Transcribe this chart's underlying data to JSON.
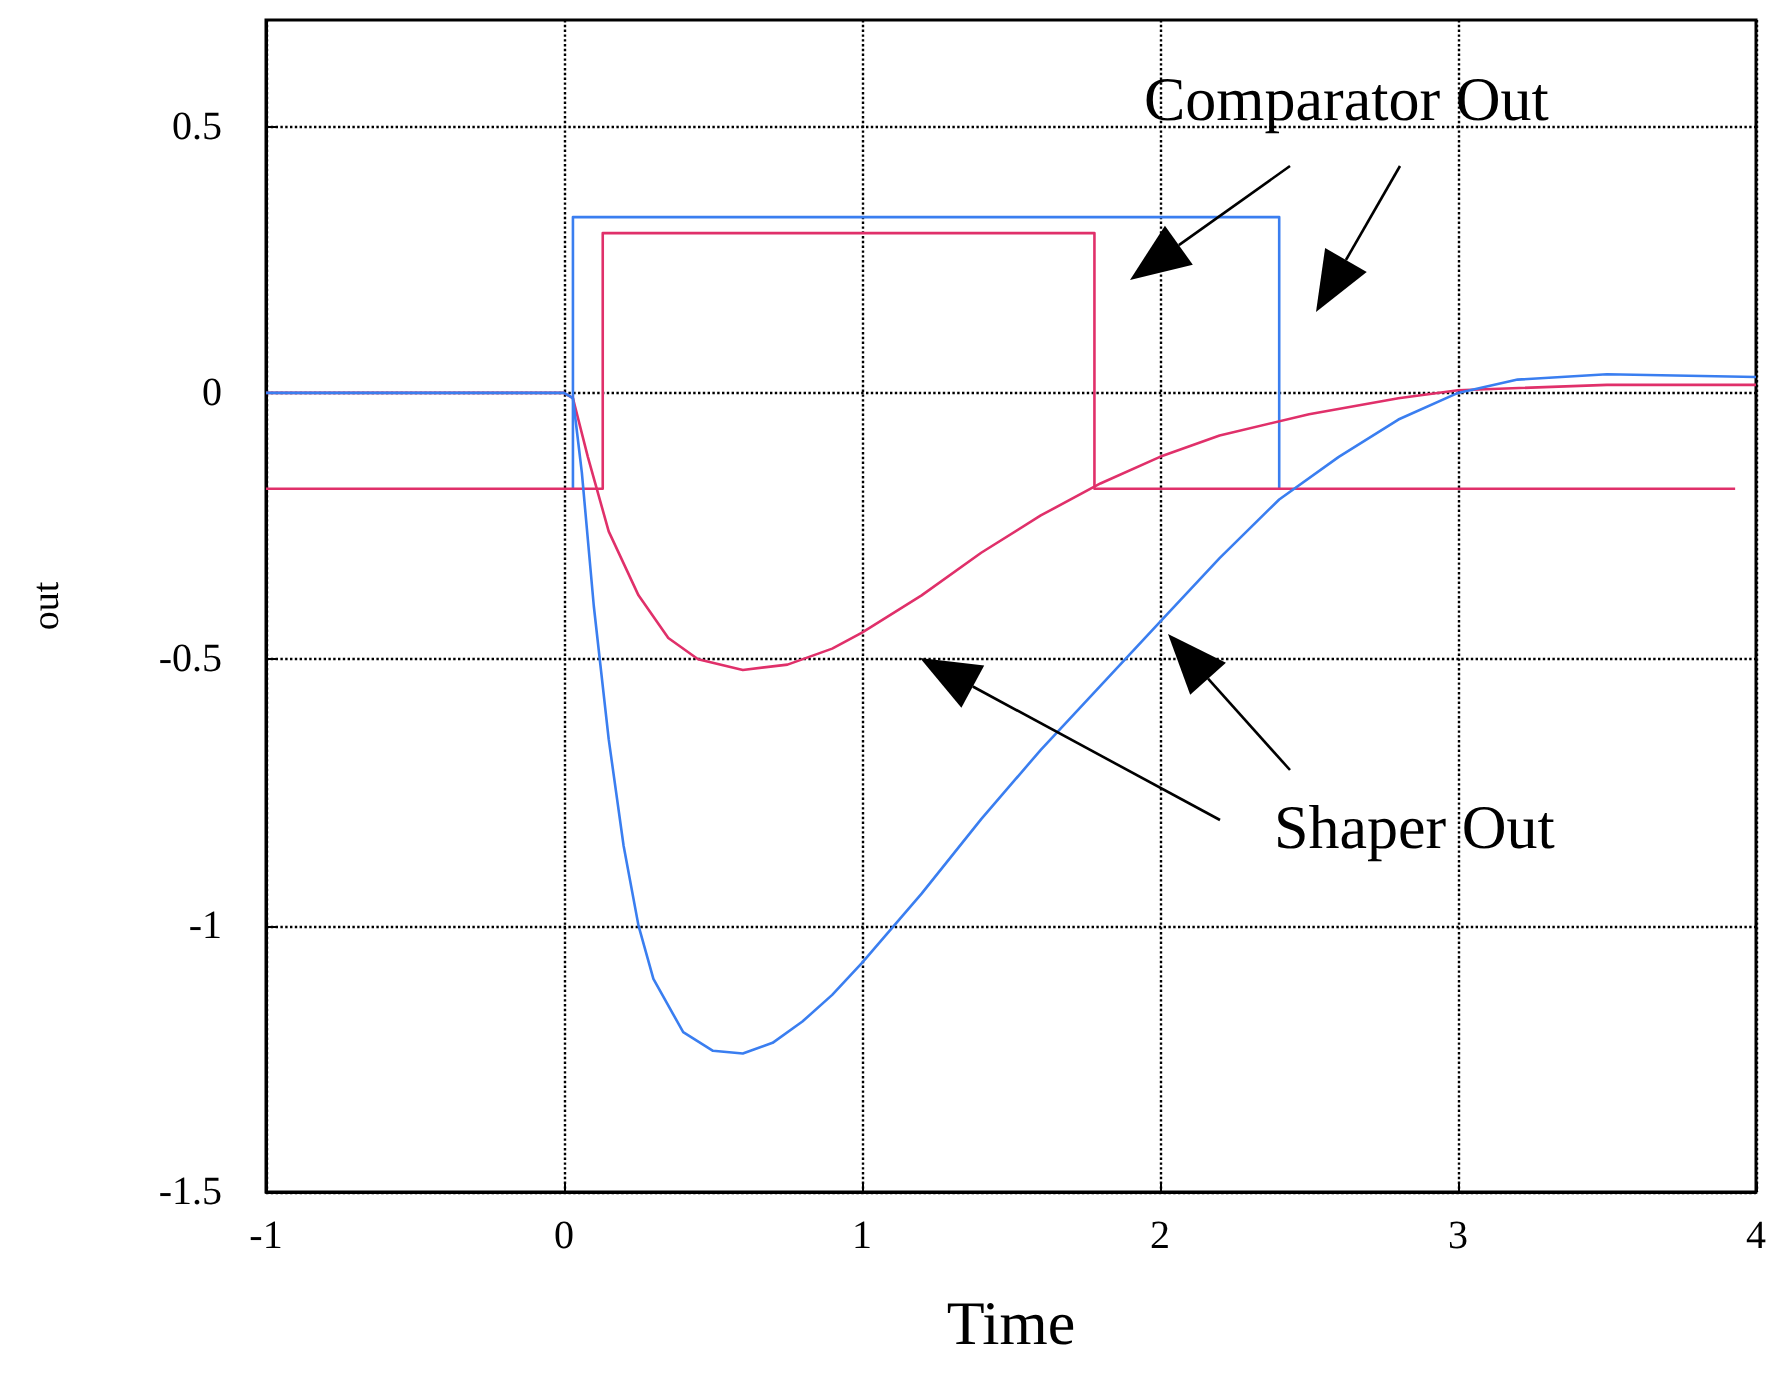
{
  "chart_data": {
    "type": "line",
    "xlabel": "Time",
    "ylabel": "out",
    "xlim": [
      -1,
      4
    ],
    "xticks": [
      -1,
      0,
      1,
      2,
      3,
      4
    ],
    "ylim": [
      -1.5,
      0.7
    ],
    "yticks": [
      -1.5,
      -1,
      -0.5,
      0,
      0.5
    ],
    "grid": true,
    "marker": "none",
    "line_style": "solid",
    "annotations": [
      "Comparator Out",
      "Shaper Out"
    ],
    "series": [
      {
        "color": "#3a7ef0",
        "x": [
          0.03,
          0.03,
          2.4,
          2.4
        ],
        "values": [
          -0.18,
          0.33,
          0.33,
          -0.18
        ]
      },
      {
        "color": "#e0306a",
        "x": [
          -1,
          0.13,
          0.13,
          1.78,
          1.78,
          3.93
        ],
        "values": [
          -0.18,
          -0.18,
          0.3,
          0.3,
          -0.18,
          -0.18
        ]
      },
      {
        "color": "#e0306a",
        "x": [
          -1,
          0,
          0.03,
          0.08,
          0.15,
          0.25,
          0.35,
          0.45,
          0.6,
          0.75,
          0.9,
          1.0,
          1.2,
          1.4,
          1.6,
          1.8,
          2.0,
          2.2,
          2.5,
          2.8,
          3.0,
          3.5,
          4
        ],
        "values": [
          0,
          0,
          -0.01,
          -0.12,
          -0.26,
          -0.38,
          -0.46,
          -0.5,
          -0.52,
          -0.51,
          -0.48,
          -0.45,
          -0.38,
          -0.3,
          -0.23,
          -0.17,
          -0.12,
          -0.08,
          -0.04,
          -0.01,
          0.005,
          0.015,
          0.015
        ]
      },
      {
        "color": "#3a7ef0",
        "x": [
          -1,
          0,
          0.03,
          0.06,
          0.1,
          0.15,
          0.2,
          0.25,
          0.3,
          0.4,
          0.5,
          0.6,
          0.7,
          0.8,
          0.9,
          1.0,
          1.2,
          1.4,
          1.6,
          1.8,
          2.0,
          2.2,
          2.4,
          2.6,
          2.8,
          3.0,
          3.2,
          3.5,
          4
        ],
        "values": [
          0,
          0,
          -0.01,
          -0.15,
          -0.4,
          -0.65,
          -0.85,
          -1.0,
          -1.1,
          -1.2,
          -1.235,
          -1.24,
          -1.22,
          -1.18,
          -1.13,
          -1.07,
          -0.94,
          -0.8,
          -0.67,
          -0.55,
          -0.43,
          -0.31,
          -0.2,
          -0.12,
          -0.05,
          0,
          0.025,
          0.035,
          0.03
        ]
      }
    ]
  }
}
